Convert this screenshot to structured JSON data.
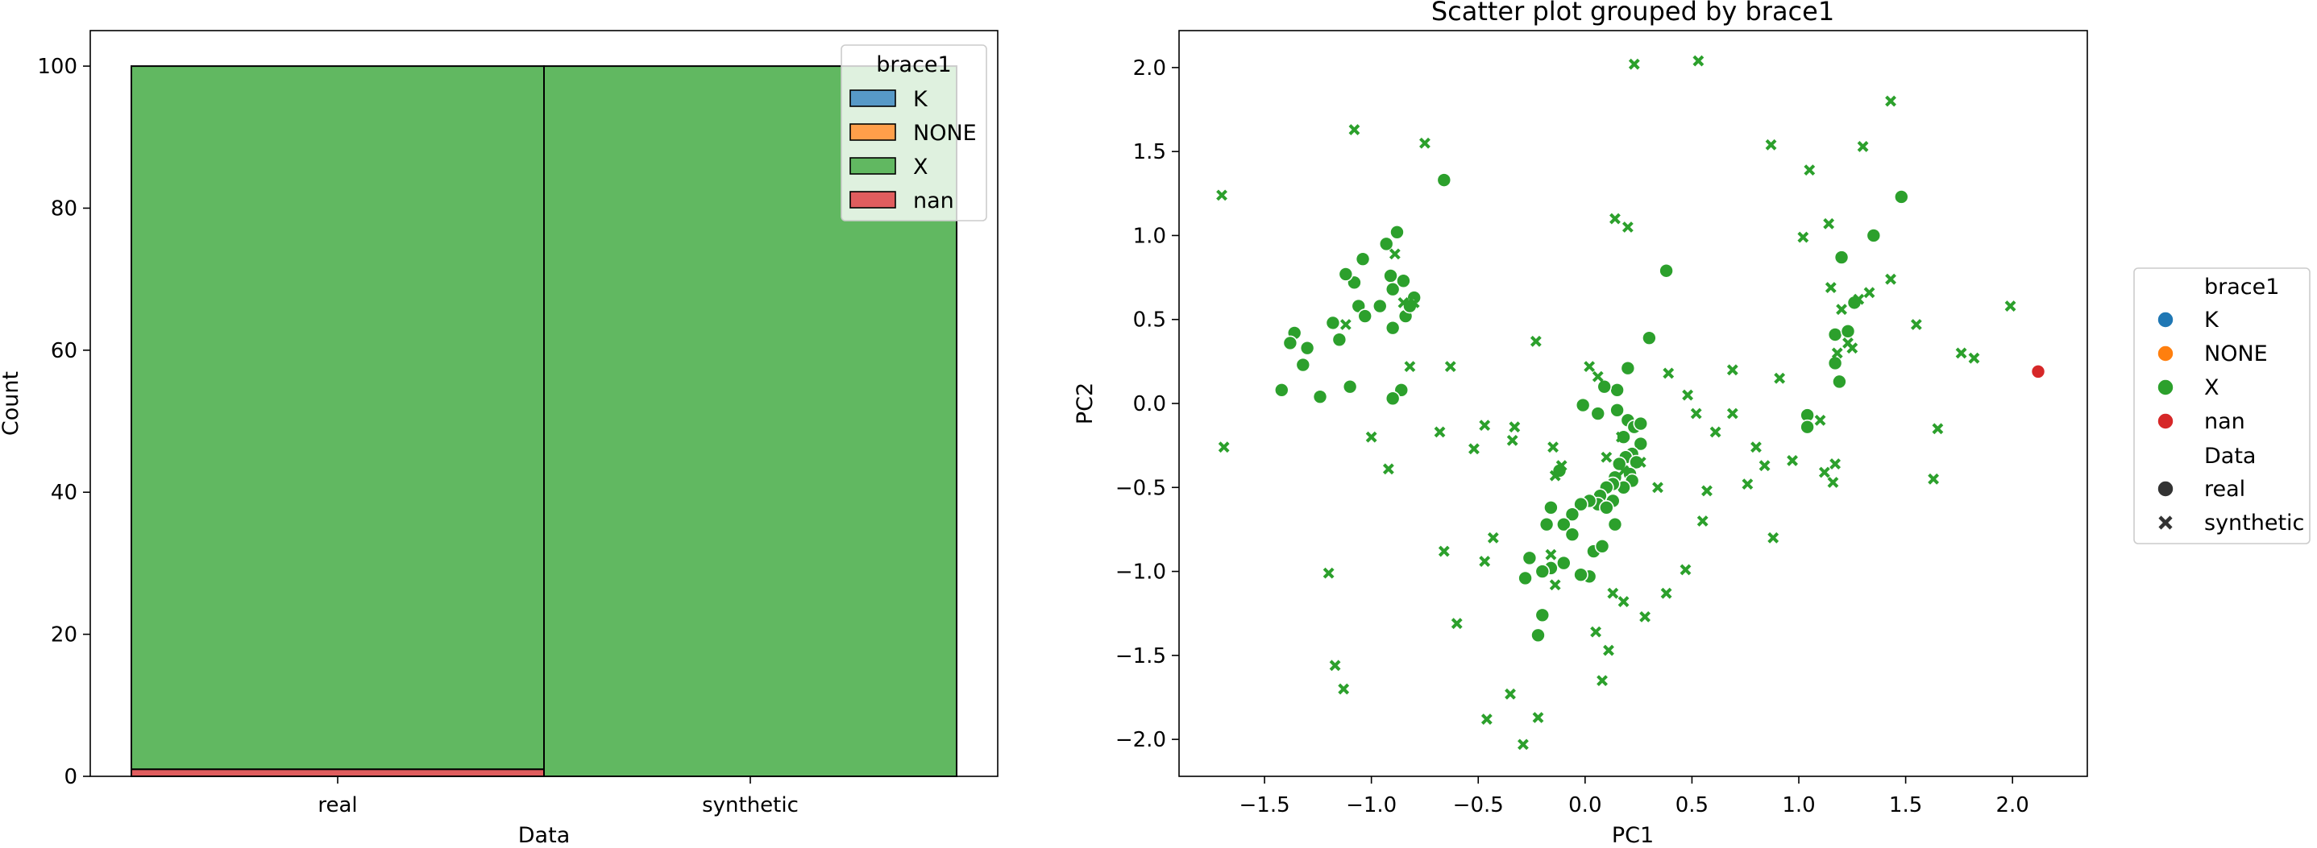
{
  "chart_data": [
    {
      "type": "bar",
      "stacked": true,
      "title": "",
      "xlabel": "Data",
      "ylabel": "Count",
      "categories": [
        "real",
        "synthetic"
      ],
      "ylim": [
        0,
        105
      ],
      "yticks": [
        0,
        20,
        40,
        60,
        80,
        100
      ],
      "series": [
        {
          "name": "K",
          "color": "#1f77b4",
          "values": [
            0,
            0
          ]
        },
        {
          "name": "NONE",
          "color": "#ff7f0e",
          "values": [
            0,
            0
          ]
        },
        {
          "name": "X",
          "color": "#2ca02c",
          "values": [
            99,
            100
          ]
        },
        {
          "name": "nan",
          "color": "#d62728",
          "values": [
            1,
            0
          ]
        }
      ],
      "legend": {
        "title": "brace1",
        "placement": "top-right"
      }
    },
    {
      "type": "scatter",
      "title": "Scatter plot grouped by brace1",
      "xlabel": "PC1",
      "ylabel": "PC2",
      "xlim": [
        -1.9,
        2.35
      ],
      "ylim": [
        -2.22,
        2.22
      ],
      "xticks": [
        -1.5,
        -1.0,
        -0.5,
        0.0,
        0.5,
        1.0,
        1.5,
        2.0
      ],
      "yticks": [
        -2.0,
        -1.5,
        -1.0,
        -0.5,
        0.0,
        0.5,
        1.0,
        1.5,
        2.0
      ],
      "hue_legend": {
        "title": "brace1",
        "items": [
          {
            "name": "K",
            "color": "#1f77b4"
          },
          {
            "name": "NONE",
            "color": "#ff7f0e"
          },
          {
            "name": "X",
            "color": "#2ca02c"
          },
          {
            "name": "nan",
            "color": "#d62728"
          }
        ]
      },
      "style_legend": {
        "title": "Data",
        "items": [
          {
            "name": "real",
            "marker": "circle"
          },
          {
            "name": "synthetic",
            "marker": "x"
          }
        ]
      },
      "series": [
        {
          "name": "X",
          "style": "real",
          "color": "#2ca02c",
          "marker": "circle",
          "points": [
            [
              -1.42,
              0.08
            ],
            [
              -1.36,
              0.42
            ],
            [
              -1.38,
              0.36
            ],
            [
              -1.3,
              0.33
            ],
            [
              -1.32,
              0.23
            ],
            [
              -1.24,
              0.04
            ],
            [
              -1.18,
              0.48
            ],
            [
              -1.15,
              0.38
            ],
            [
              -1.1,
              0.1
            ],
            [
              -1.08,
              0.72
            ],
            [
              -1.12,
              0.77
            ],
            [
              -1.06,
              0.58
            ],
            [
              -1.04,
              0.86
            ],
            [
              -1.03,
              0.52
            ],
            [
              -0.96,
              0.58
            ],
            [
              -0.93,
              0.95
            ],
            [
              -0.88,
              1.02
            ],
            [
              -0.91,
              0.76
            ],
            [
              -0.9,
              0.68
            ],
            [
              -0.85,
              0.73
            ],
            [
              -0.84,
              0.52
            ],
            [
              -0.8,
              0.63
            ],
            [
              -0.82,
              0.58
            ],
            [
              -0.9,
              0.45
            ],
            [
              -0.86,
              0.08
            ],
            [
              -0.9,
              0.03
            ],
            [
              -0.66,
              1.33
            ],
            [
              0.38,
              0.79
            ],
            [
              0.3,
              0.39
            ],
            [
              0.2,
              0.21
            ],
            [
              0.15,
              0.08
            ],
            [
              0.09,
              0.1
            ],
            [
              -0.01,
              -0.01
            ],
            [
              0.06,
              -0.06
            ],
            [
              0.15,
              -0.04
            ],
            [
              0.2,
              -0.1
            ],
            [
              0.23,
              -0.14
            ],
            [
              0.26,
              -0.12
            ],
            [
              0.18,
              -0.2
            ],
            [
              0.26,
              -0.24
            ],
            [
              0.22,
              -0.3
            ],
            [
              0.19,
              -0.32
            ],
            [
              0.24,
              -0.35
            ],
            [
              0.16,
              -0.36
            ],
            [
              0.21,
              -0.42
            ],
            [
              0.14,
              -0.44
            ],
            [
              0.22,
              -0.46
            ],
            [
              0.18,
              -0.5
            ],
            [
              0.13,
              -0.48
            ],
            [
              0.1,
              -0.5
            ],
            [
              0.07,
              -0.55
            ],
            [
              0.06,
              -0.6
            ],
            [
              0.02,
              -0.58
            ],
            [
              0.13,
              -0.58
            ],
            [
              0.1,
              -0.62
            ],
            [
              -0.02,
              -0.6
            ],
            [
              -0.06,
              -0.66
            ],
            [
              -0.1,
              -0.72
            ],
            [
              -0.06,
              -0.78
            ],
            [
              -0.16,
              -0.62
            ],
            [
              -0.18,
              -0.72
            ],
            [
              -0.16,
              -0.98
            ],
            [
              -0.2,
              -1.0
            ],
            [
              -0.26,
              -0.92
            ],
            [
              -0.1,
              -0.95
            ],
            [
              -0.28,
              -1.04
            ],
            [
              -0.2,
              -1.26
            ],
            [
              -0.22,
              -1.38
            ],
            [
              0.02,
              -1.03
            ],
            [
              -0.02,
              -1.02
            ],
            [
              0.04,
              -0.88
            ],
            [
              0.08,
              -0.85
            ],
            [
              0.14,
              -0.72
            ],
            [
              -0.12,
              -0.4
            ],
            [
              1.04,
              -0.07
            ],
            [
              1.04,
              -0.14
            ],
            [
              1.17,
              0.24
            ],
            [
              1.17,
              0.41
            ],
            [
              1.19,
              0.13
            ],
            [
              1.2,
              0.87
            ],
            [
              1.23,
              0.43
            ],
            [
              1.26,
              0.6
            ],
            [
              1.35,
              1.0
            ],
            [
              1.48,
              1.23
            ],
            [
              2.12,
              0.19
            ]
          ]
        },
        {
          "name": "X",
          "style": "synthetic",
          "color": "#2ca02c",
          "marker": "x",
          "points": [
            [
              -1.7,
              1.24
            ],
            [
              -1.69,
              -0.26
            ],
            [
              -1.08,
              1.63
            ],
            [
              -0.75,
              1.55
            ],
            [
              -1.12,
              0.47
            ],
            [
              -1.0,
              -0.2
            ],
            [
              -0.92,
              -0.39
            ],
            [
              -0.89,
              0.89
            ],
            [
              -0.85,
              0.6
            ],
            [
              -0.8,
              0.6
            ],
            [
              -0.82,
              0.22
            ],
            [
              -0.68,
              -0.17
            ],
            [
              -0.63,
              0.22
            ],
            [
              -1.2,
              -1.01
            ],
            [
              -1.17,
              -1.56
            ],
            [
              -1.13,
              -1.7
            ],
            [
              -0.6,
              -1.31
            ],
            [
              -0.52,
              -0.27
            ],
            [
              -0.47,
              -0.13
            ],
            [
              -0.43,
              -0.8
            ],
            [
              -0.47,
              -0.94
            ],
            [
              -0.35,
              -1.73
            ],
            [
              -0.46,
              -1.88
            ],
            [
              -0.29,
              -2.03
            ],
            [
              -0.22,
              -1.87
            ],
            [
              -0.34,
              -0.22
            ],
            [
              -0.33,
              -0.14
            ],
            [
              -0.66,
              -0.88
            ],
            [
              -0.23,
              0.37
            ],
            [
              -0.15,
              -0.26
            ],
            [
              -0.11,
              -0.37
            ],
            [
              -0.14,
              -0.43
            ],
            [
              -0.16,
              -0.9
            ],
            [
              -0.14,
              -1.08
            ],
            [
              0.02,
              0.22
            ],
            [
              0.06,
              0.16
            ],
            [
              0.13,
              -1.13
            ],
            [
              0.11,
              -1.47
            ],
            [
              0.08,
              -1.65
            ],
            [
              0.18,
              -1.18
            ],
            [
              0.05,
              -1.36
            ],
            [
              0.14,
              1.1
            ],
            [
              0.2,
              1.05
            ],
            [
              0.23,
              2.02
            ],
            [
              0.53,
              2.04
            ],
            [
              0.28,
              -1.27
            ],
            [
              0.38,
              -1.13
            ],
            [
              0.47,
              -0.99
            ],
            [
              0.34,
              -0.5
            ],
            [
              0.39,
              0.18
            ],
            [
              0.48,
              0.05
            ],
            [
              0.52,
              -0.06
            ],
            [
              0.55,
              -0.7
            ],
            [
              0.57,
              -0.52
            ],
            [
              0.61,
              -0.17
            ],
            [
              0.69,
              -0.06
            ],
            [
              0.69,
              0.2
            ],
            [
              0.76,
              -0.48
            ],
            [
              0.8,
              -0.26
            ],
            [
              0.84,
              -0.37
            ],
            [
              0.88,
              -0.8
            ],
            [
              0.87,
              1.54
            ],
            [
              0.91,
              0.15
            ],
            [
              0.97,
              -0.34
            ],
            [
              1.02,
              0.99
            ],
            [
              1.05,
              1.39
            ],
            [
              1.1,
              -0.1
            ],
            [
              1.12,
              -0.41
            ],
            [
              1.14,
              1.07
            ],
            [
              1.15,
              0.69
            ],
            [
              1.2,
              0.56
            ],
            [
              1.25,
              0.33
            ],
            [
              1.28,
              0.62
            ],
            [
              1.3,
              1.53
            ],
            [
              1.33,
              0.66
            ],
            [
              1.43,
              1.8
            ],
            [
              1.43,
              0.74
            ],
            [
              1.55,
              0.47
            ],
            [
              1.63,
              -0.45
            ],
            [
              1.65,
              -0.15
            ],
            [
              1.76,
              0.3
            ],
            [
              1.82,
              0.27
            ],
            [
              1.99,
              0.58
            ],
            [
              1.16,
              -0.47
            ],
            [
              1.17,
              -0.36
            ],
            [
              1.18,
              0.3
            ],
            [
              1.23,
              0.36
            ],
            [
              0.1,
              -0.32
            ],
            [
              0.17,
              -0.2
            ],
            [
              0.26,
              -0.35
            ],
            [
              0.18,
              -0.4
            ]
          ]
        }
      ]
    }
  ]
}
